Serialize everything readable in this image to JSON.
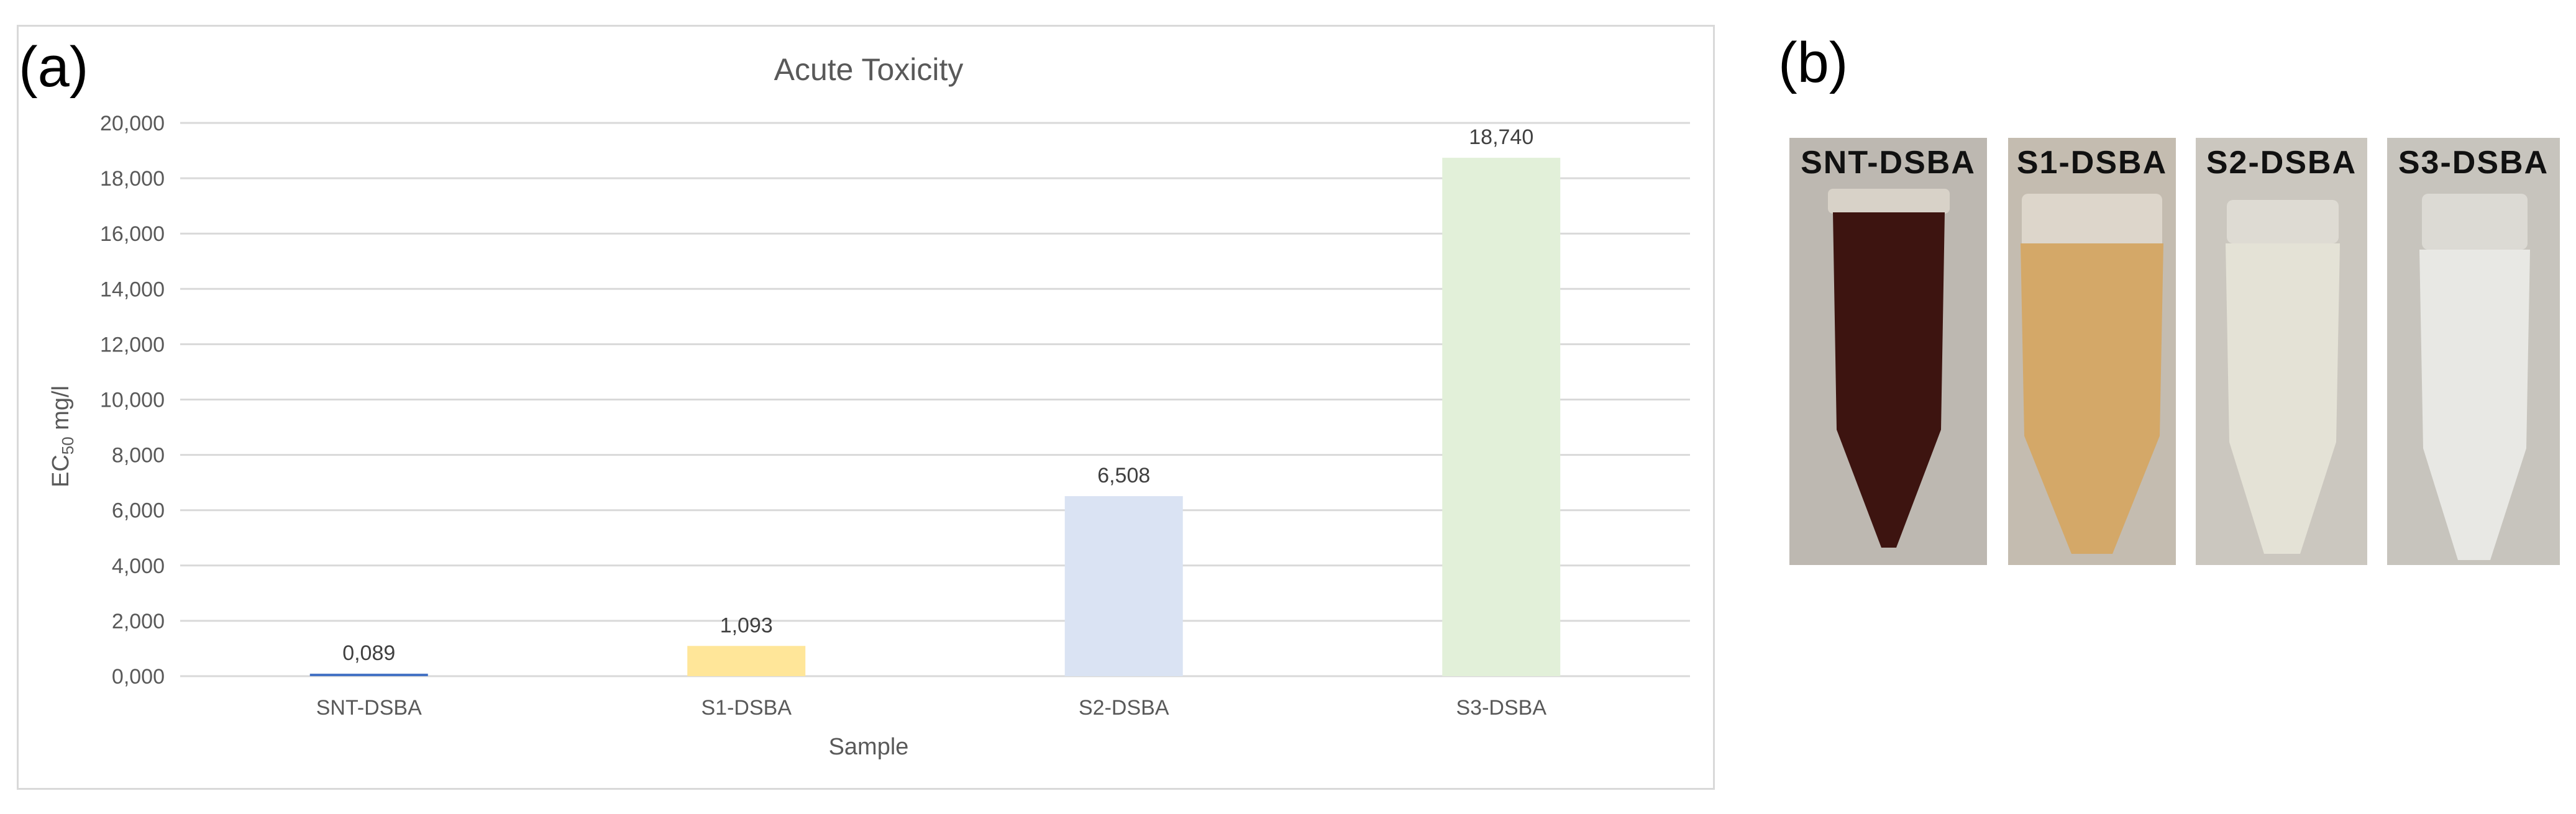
{
  "panels": {
    "a": "(a)",
    "b": "(b)"
  },
  "chart_data": {
    "type": "bar",
    "title": "Acute Toxicity",
    "xlabel": "Sample",
    "ylabel": "EC50 mg/l",
    "ylabel_main": "EC",
    "ylabel_sub": "50",
    "ylabel_unit": " mg/l",
    "categories": [
      "SNT-DSBA",
      "S1-DSBA",
      "S2-DSBA",
      "S3-DSBA"
    ],
    "values": [
      0.089,
      1.093,
      6.508,
      18.74
    ],
    "value_labels": [
      "0,089",
      "1,093",
      "6,508",
      "18,740"
    ],
    "bar_colors": [
      "#4472c4",
      "#ffe699",
      "#dae3f3",
      "#e2f0d9"
    ],
    "ylim": [
      0,
      20
    ],
    "yticks": [
      0,
      2,
      4,
      6,
      8,
      10,
      12,
      14,
      16,
      18,
      20
    ],
    "ytick_labels": [
      "0,000",
      "2,000",
      "4,000",
      "6,000",
      "8,000",
      "10,000",
      "12,000",
      "14,000",
      "16,000",
      "18,000",
      "20,000"
    ],
    "grid": true,
    "gridline_color": "#d9d9d9"
  },
  "photos": [
    {
      "label": "SNT-DSBA",
      "liquid_color": "#3d1410"
    },
    {
      "label": "S1-DSBA",
      "liquid_color": "#d4a868"
    },
    {
      "label": "S2-DSBA",
      "liquid_color": "#e4e2d6"
    },
    {
      "label": "S3-DSBA",
      "liquid_color": "#e8e8e4"
    }
  ]
}
